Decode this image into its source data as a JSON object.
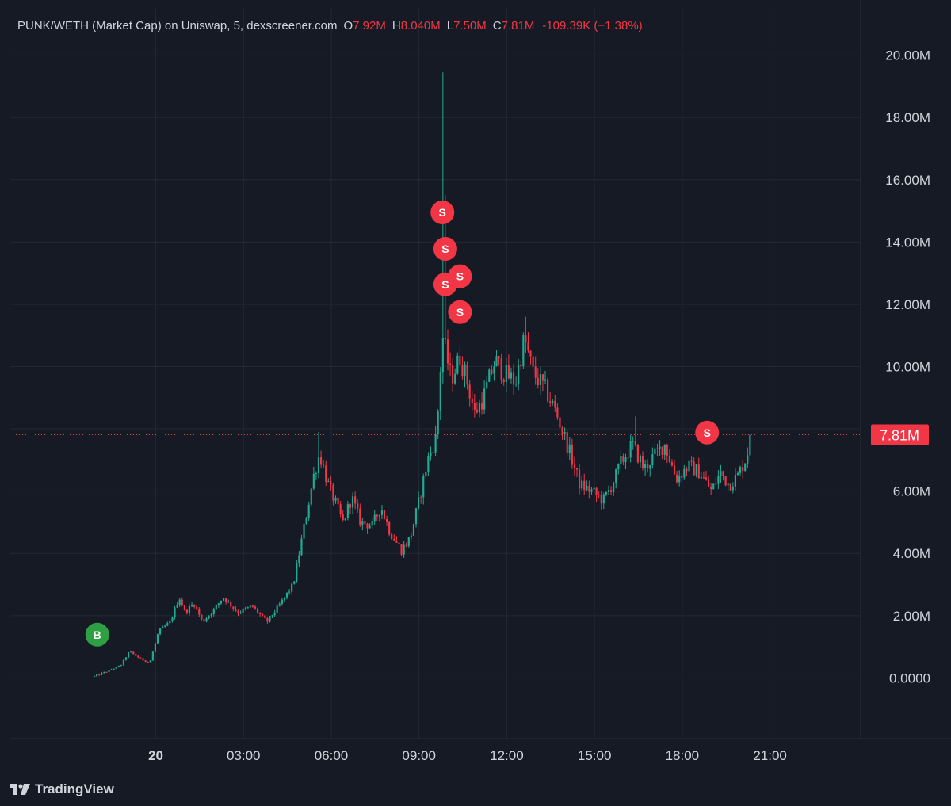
{
  "legend": {
    "symbol": "PUNK/WETH (Market Cap) on Uniswap, 5, dexscreener.com",
    "open_label": "O",
    "open": "7.92M",
    "high_label": "H",
    "high": "8.040M",
    "low_label": "L",
    "low": "7.50M",
    "close_label": "C",
    "close": "7.81M",
    "change": "-109.39K (−1.38%)"
  },
  "brand": {
    "name": "TradingView",
    "logo": "tradingview-logo-icon"
  },
  "colors": {
    "background": "#161a25",
    "grid": "#242833",
    "up": "#22ab94",
    "down": "#f23645",
    "text": "#d1d4dc",
    "buy_marker": "#2ea043",
    "sell_marker": "#f23645"
  },
  "chart_data": {
    "type": "candlestick",
    "title": "",
    "xlabel": "",
    "ylabel": "",
    "y_unit": "market cap",
    "ylim": [
      -1950000,
      20500000
    ],
    "xlim_hours": [
      -5,
      24.1
    ],
    "grid": true,
    "y_ticks": [
      {
        "value": 0,
        "label": "0.0000"
      },
      {
        "value": 2000000,
        "label": "2.00M"
      },
      {
        "value": 4000000,
        "label": "4.00M"
      },
      {
        "value": 6000000,
        "label": "6.00M"
      },
      {
        "value": 8000000,
        "label": ""
      },
      {
        "value": 10000000,
        "label": "10.00M"
      },
      {
        "value": 12000000,
        "label": "12.00M"
      },
      {
        "value": 14000000,
        "label": "14.00M"
      },
      {
        "value": 16000000,
        "label": "16.00M"
      },
      {
        "value": 18000000,
        "label": "18.00M"
      },
      {
        "value": 20000000,
        "label": "20.00M"
      }
    ],
    "x_ticks": [
      {
        "hour": 0,
        "label": "20",
        "bold": true
      },
      {
        "hour": 3,
        "label": "03:00",
        "bold": false
      },
      {
        "hour": 6,
        "label": "06:00",
        "bold": false
      },
      {
        "hour": 9,
        "label": "09:00",
        "bold": false
      },
      {
        "hour": 12,
        "label": "12:00",
        "bold": false
      },
      {
        "hour": 15,
        "label": "15:00",
        "bold": false
      },
      {
        "hour": 18,
        "label": "18:00",
        "bold": false
      },
      {
        "hour": 21,
        "label": "21:00",
        "bold": false
      }
    ],
    "last_price": {
      "value": 7810000,
      "label": "7.81M"
    },
    "interval_minutes": 5,
    "markers": [
      {
        "type": "B",
        "hour": -2.0,
        "value": 1390000
      },
      {
        "type": "S",
        "hour": 9.8,
        "value": 14950000
      },
      {
        "type": "S",
        "hour": 9.9,
        "value": 13780000
      },
      {
        "type": "S",
        "hour": 9.9,
        "value": 12640000
      },
      {
        "type": "S",
        "hour": 10.4,
        "value": 12900000
      },
      {
        "type": "S",
        "hour": 10.4,
        "value": 11750000
      },
      {
        "type": "S",
        "hour": 18.85,
        "value": 7880000
      }
    ],
    "path": [
      [
        -2.1,
        50000
      ],
      [
        -1.7,
        200000
      ],
      [
        -1.2,
        400000
      ],
      [
        -0.9,
        850000
      ],
      [
        -0.5,
        600000
      ],
      [
        -0.2,
        500000
      ],
      [
        0.1,
        1500000
      ],
      [
        0.5,
        1800000
      ],
      [
        0.8,
        2600000
      ],
      [
        1.0,
        2100000
      ],
      [
        1.3,
        2400000
      ],
      [
        1.6,
        1800000
      ],
      [
        2.0,
        2200000
      ],
      [
        2.3,
        2600000
      ],
      [
        2.8,
        2100000
      ],
      [
        3.3,
        2300000
      ],
      [
        3.8,
        1800000
      ],
      [
        4.2,
        2300000
      ],
      [
        4.7,
        3000000
      ],
      [
        5.0,
        4500000
      ],
      [
        5.4,
        6500000
      ],
      [
        5.6,
        7200000
      ],
      [
        5.9,
        6200000
      ],
      [
        6.4,
        5000000
      ],
      [
        6.7,
        5800000
      ],
      [
        7.0,
        5000000
      ],
      [
        7.4,
        4900000
      ],
      [
        7.7,
        5500000
      ],
      [
        8.0,
        4700000
      ],
      [
        8.4,
        4100000
      ],
      [
        8.7,
        4500000
      ],
      [
        9.0,
        5700000
      ],
      [
        9.3,
        7000000
      ],
      [
        9.6,
        7800000
      ],
      [
        9.8,
        11000000
      ],
      [
        10.1,
        9600000
      ],
      [
        10.4,
        10300000
      ],
      [
        10.6,
        9700000
      ],
      [
        10.9,
        8500000
      ],
      [
        11.2,
        9000000
      ],
      [
        11.6,
        10200000
      ],
      [
        11.9,
        9800000
      ],
      [
        12.3,
        9500000
      ],
      [
        12.6,
        10900000
      ],
      [
        12.9,
        9800000
      ],
      [
        13.3,
        9300000
      ],
      [
        13.7,
        8500000
      ],
      [
        14.1,
        7400000
      ],
      [
        14.5,
        6200000
      ],
      [
        14.9,
        6000000
      ],
      [
        15.3,
        5700000
      ],
      [
        15.6,
        6200000
      ],
      [
        15.9,
        6900000
      ],
      [
        16.3,
        7500000
      ],
      [
        16.7,
        6700000
      ],
      [
        17.0,
        7100000
      ],
      [
        17.4,
        7500000
      ],
      [
        17.8,
        6400000
      ],
      [
        18.2,
        6800000
      ],
      [
        18.6,
        6600000
      ],
      [
        19.0,
        6000000
      ],
      [
        19.3,
        6600000
      ],
      [
        19.6,
        6200000
      ],
      [
        19.9,
        6500000
      ],
      [
        20.2,
        7100000
      ],
      [
        20.35,
        7810000
      ]
    ],
    "spikes": [
      {
        "hour": 9.8,
        "high": 19450000
      },
      {
        "hour": 9.9,
        "high": 15500000
      },
      {
        "hour": 12.65,
        "high": 11600000
      },
      {
        "hour": 5.6,
        "high": 7900000
      },
      {
        "hour": 16.4,
        "high": 8400000
      }
    ]
  }
}
